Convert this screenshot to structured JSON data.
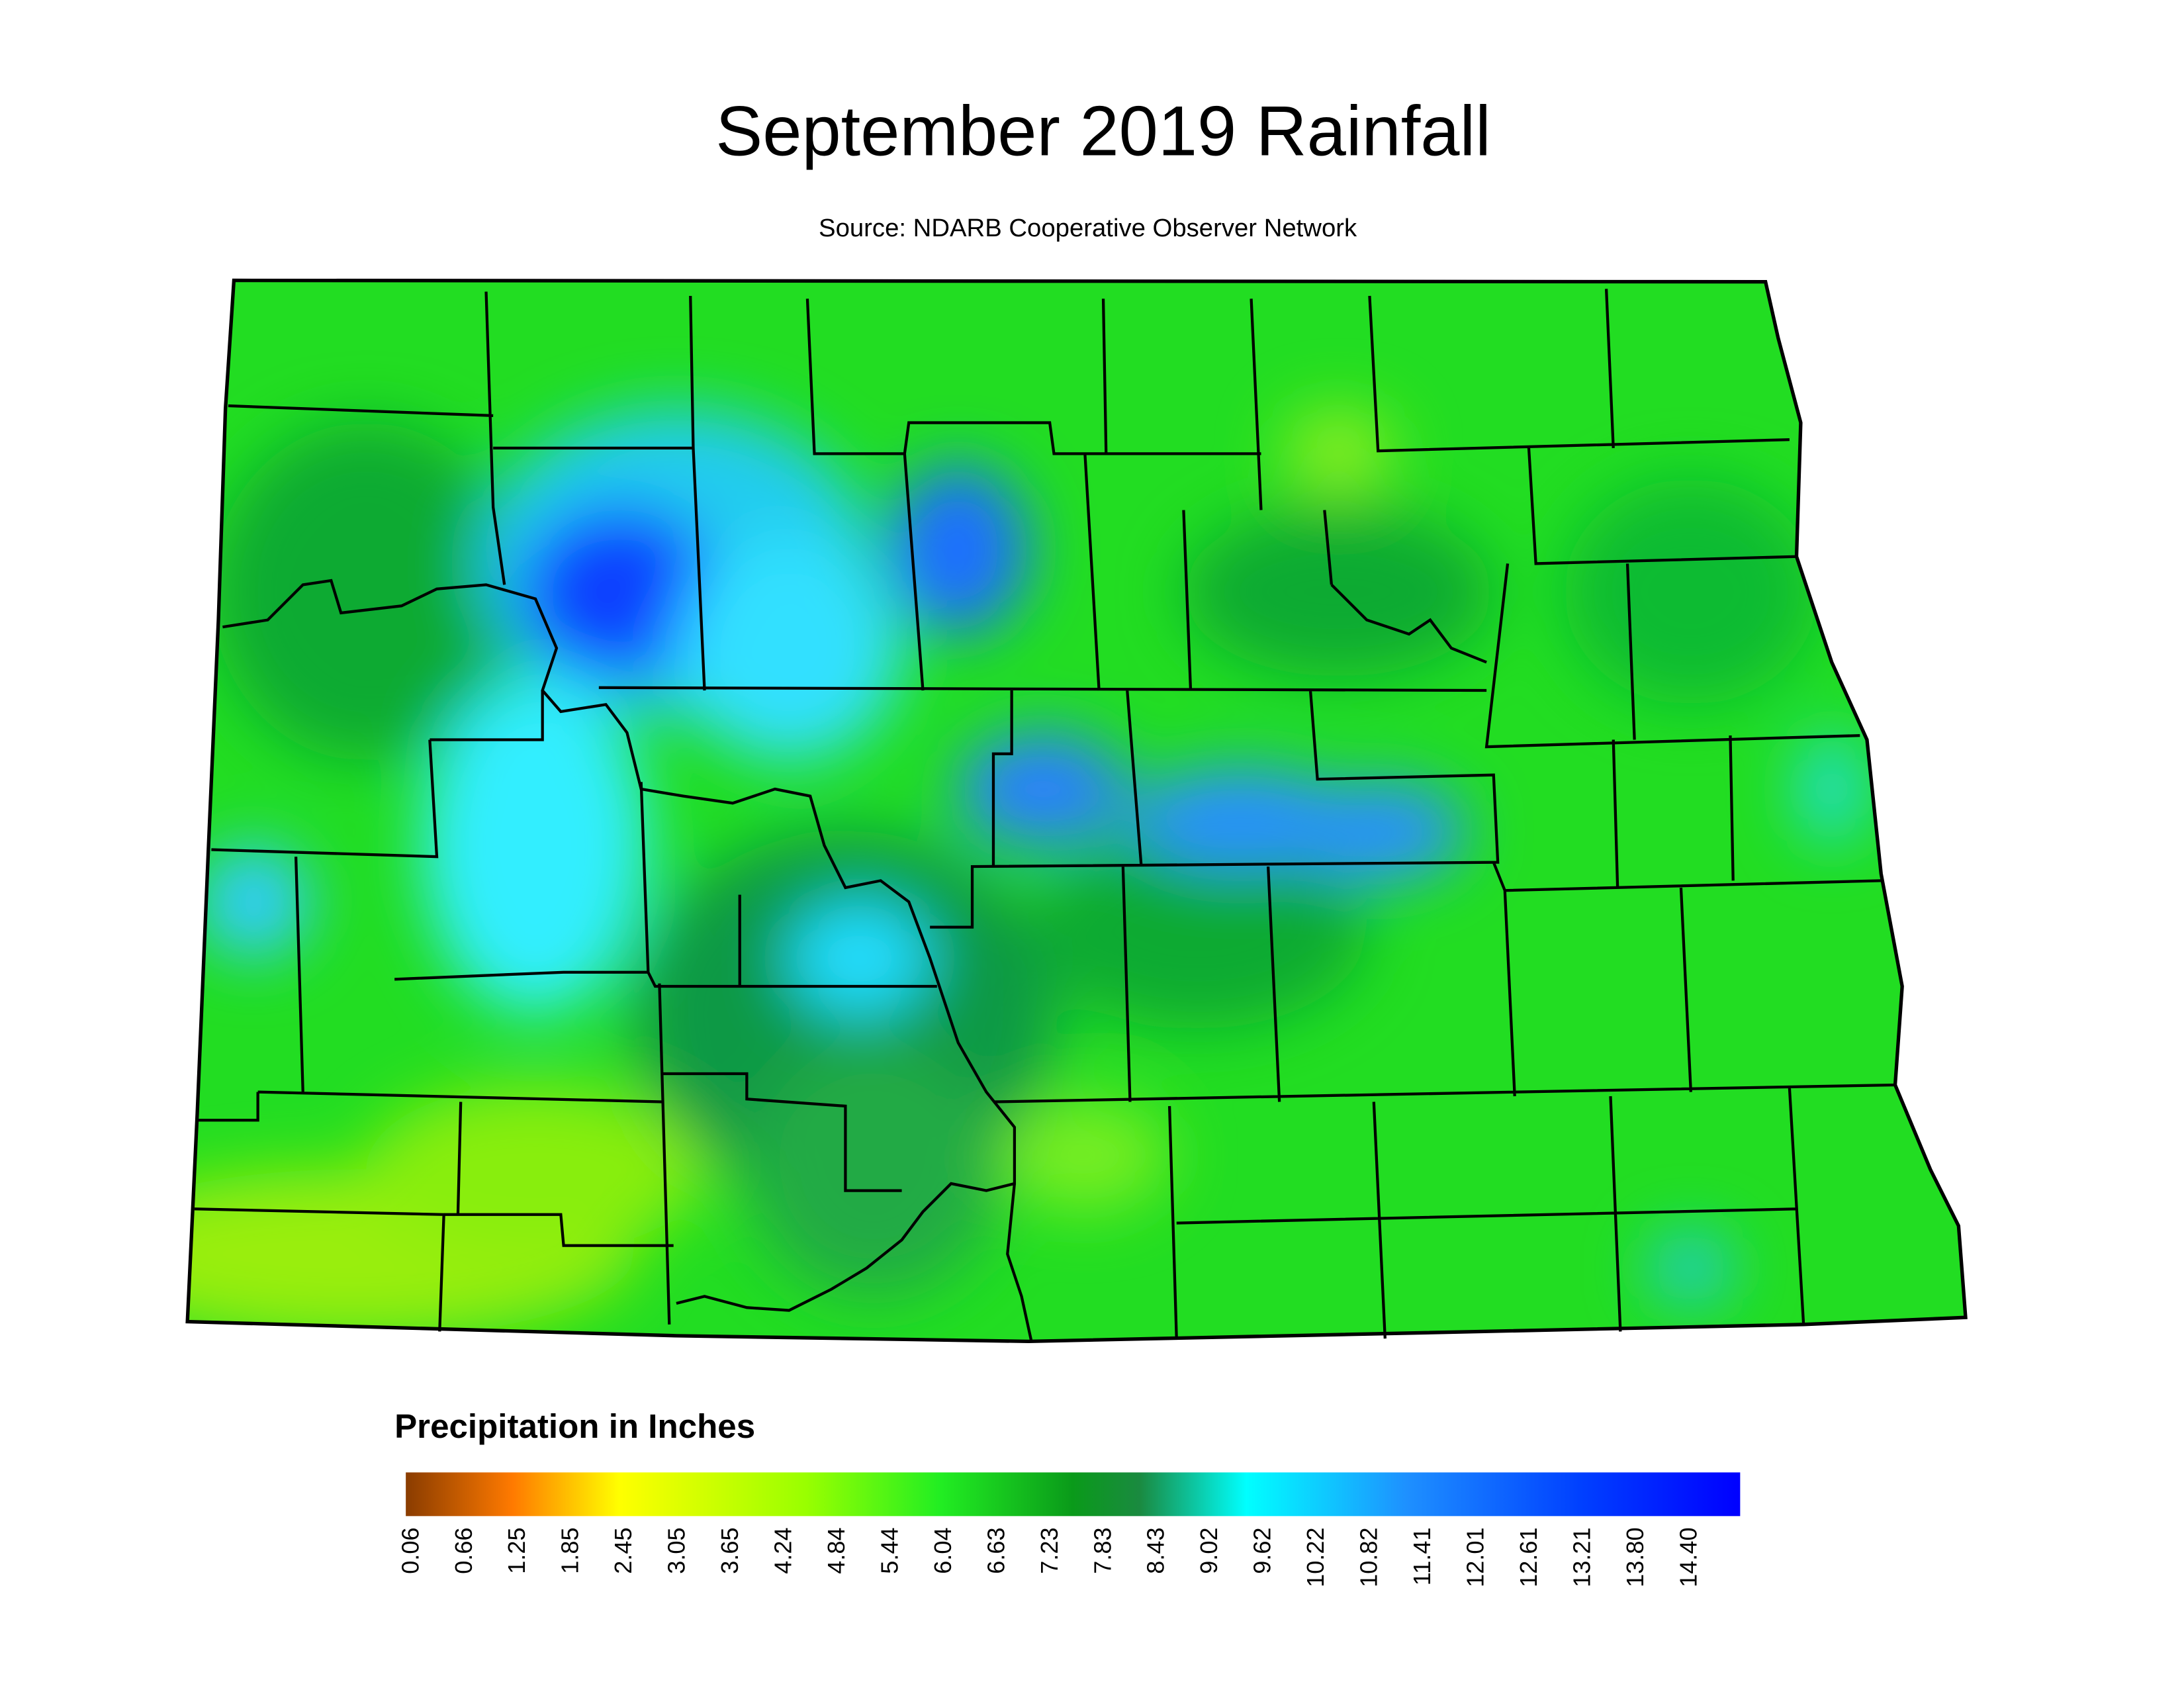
{
  "title": "September 2019 Rainfall",
  "subtitle": "Source: NDARB Cooperative Observer Network",
  "legend": {
    "title": "Precipitation in Inches",
    "ticks": [
      "0.06",
      "0.66",
      "1.25",
      "1.85",
      "2.45",
      "3.05",
      "3.65",
      "4.24",
      "4.84",
      "5.44",
      "6.04",
      "6.63",
      "7.23",
      "7.83",
      "8.43",
      "9.02",
      "9.62",
      "10.22",
      "10.82",
      "11.41",
      "12.01",
      "12.61",
      "13.21",
      "13.80",
      "14.40"
    ]
  }
}
